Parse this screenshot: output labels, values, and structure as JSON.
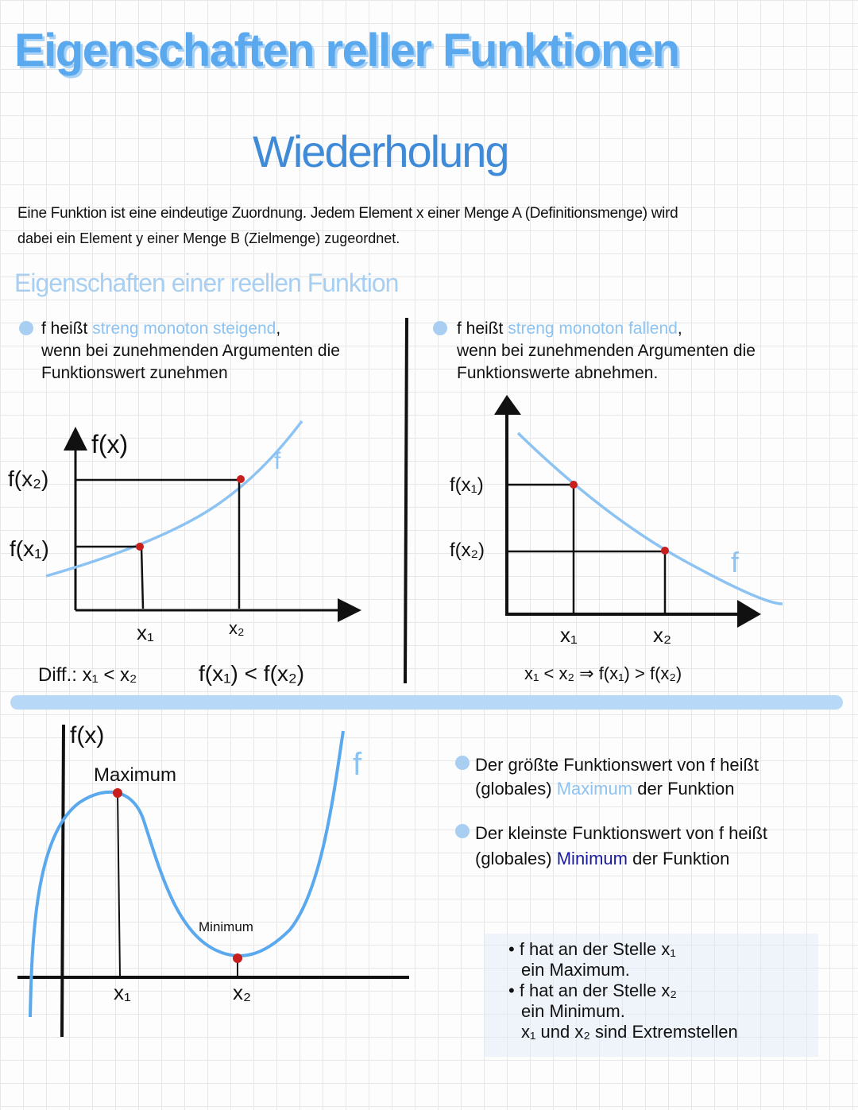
{
  "title": "Eigenschaften reller Funktionen",
  "subtitle": "Wiederholung",
  "definition": {
    "line1": "Eine Funktion ist eine eindeutige Zuordnung. Jedem Element x einer Menge A (Definitionsmenge) wird",
    "line2": "dabei ein Element y einer Menge B (Zielmenge) zugeordnet."
  },
  "section_heading": "Eigenschaften einer reellen Funktion",
  "increasing": {
    "prefix": "f heißt",
    "term": "streng monoton steigend",
    "suffix": ",",
    "line2": "wenn bei zunehmenden Argumenten die",
    "line3": "Funktionswert zunehmen",
    "graph": {
      "y_label": "f(x)",
      "fx2": "f(x₂)",
      "fx1": "f(x₁)",
      "x1": "x₁",
      "x2": "x₂",
      "curve_label": "f"
    },
    "diff_label": "Diff.: x₁ < x₂",
    "relation": "f(x₁) < f(x₂)"
  },
  "decreasing": {
    "prefix": "f heißt",
    "term": "streng monoton fallend",
    "suffix": ",",
    "line2": "wenn bei zunehmenden Argumenten die",
    "line3": "Funktionswerte abnehmen.",
    "graph": {
      "fx1": "f(x₁)",
      "fx2": "f(x₂)",
      "x1": "x₁",
      "x2": "x₂",
      "curve_label": "f"
    },
    "relation": "x₁ < x₂ ⇒ f(x₁) > f(x₂)"
  },
  "extrema_graph": {
    "y_label": "f(x)",
    "max_label": "Maximum",
    "min_label": "Minimum",
    "x1": "x₁",
    "x2": "x₂",
    "curve_label": "f"
  },
  "max_bullet": {
    "line1": "Der größte Funktionswert von f heißt",
    "pre": "(globales)",
    "term": "Maximum",
    "post": "der Funktion"
  },
  "min_bullet": {
    "line1": "Der kleinste Funktionswert von f heißt",
    "pre": "(globales)",
    "term": "Minimum",
    "post": "der Funktion"
  },
  "notes": {
    "l1": "• f hat an der Stelle x₁",
    "l2": "ein Maximum.",
    "l3": "• f hat an der Stelle x₂",
    "l4": "ein Minimum.",
    "l5": "x₁ und x₂ sind Extremstellen"
  },
  "colors": {
    "title": "#5aa8ee",
    "accent_light": "#a8cff2",
    "minimum": "#1a1aa0",
    "point": "#c81e1e"
  }
}
